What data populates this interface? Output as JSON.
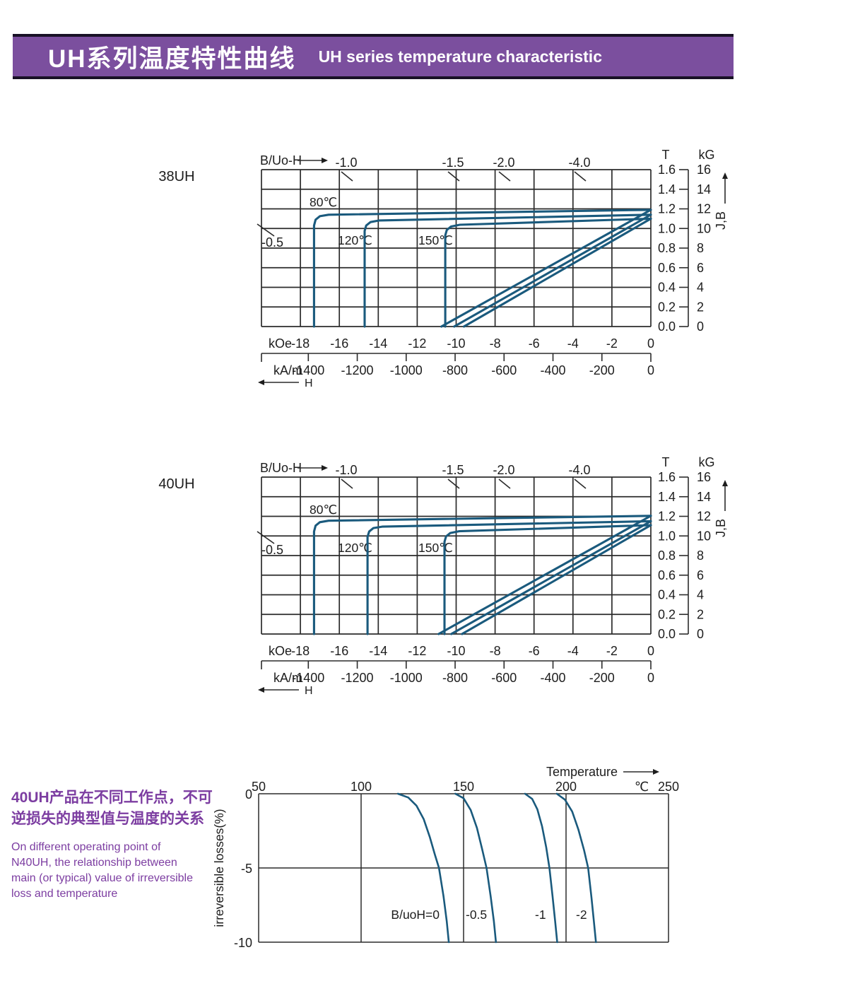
{
  "header": {
    "title_zh": "UH系列温度特性曲线",
    "title_en": "UH series temperature characteristic",
    "bg": "#7b4f9e",
    "border": "#191126",
    "text_color": "#ffffff"
  },
  "note": {
    "color": "#7c3da1",
    "zh_lines": [
      "40UH产品在不同工作点，不可",
      "逆损失的典型值与温度的关系"
    ],
    "en_lines": [
      "On different operating point of",
      "N40UH,  the relationship between",
      "main (or typical) value of irreversible",
      "loss and temperature"
    ]
  },
  "curve_color": "#1a5a7d",
  "chart_data": [
    {
      "type": "line",
      "id": "demag-38uh",
      "title": "38UH",
      "load_axis_label": "B/Uo-H",
      "load_lines_left": [
        "-0.5"
      ],
      "load_lines_top": [
        "-1.0",
        "-1.5",
        "-2.0",
        "-4.0"
      ],
      "temp_labels": [
        "80℃",
        "120℃",
        "150℃"
      ],
      "x_axis": {
        "unit_primary": "kOe",
        "ticks_primary": [
          -18,
          -16,
          -14,
          -12,
          -10,
          -8,
          -6,
          -4,
          -2,
          0
        ],
        "unit_secondary": "kA/m",
        "ticks_secondary": [
          -1400,
          -1200,
          -1000,
          -800,
          -600,
          -400,
          -200,
          0
        ],
        "arrow_label": "H",
        "range_kOe": [
          -20,
          0
        ]
      },
      "y_axis": {
        "unit_left": "T",
        "ticks_T": [
          "1.6",
          "1.4",
          "1.2",
          "1.0",
          "0.8",
          "0.6",
          "0.4",
          "0.2",
          "0.0"
        ],
        "unit_right": "kG",
        "ticks_kG": [
          "16",
          "14",
          "12",
          "10",
          "8",
          "6",
          "4",
          "2",
          "0"
        ],
        "axis_label": "J,B",
        "range_T": [
          0,
          1.6
        ]
      },
      "series": [
        {
          "name": "J 80℃",
          "points": [
            [
              -17.3,
              0
            ],
            [
              -17.3,
              1.03
            ],
            [
              -17.22,
              1.09
            ],
            [
              -17.0,
              1.125
            ],
            [
              -16.55,
              1.14
            ],
            [
              0,
              1.19
            ]
          ]
        },
        {
          "name": "J 120℃",
          "points": [
            [
              -14.7,
              0
            ],
            [
              -14.7,
              0.975
            ],
            [
              -14.62,
              1.03
            ],
            [
              -14.4,
              1.065
            ],
            [
              -13.95,
              1.082
            ],
            [
              0,
              1.14
            ]
          ]
        },
        {
          "name": "J 150℃",
          "points": [
            [
              -10.56,
              0
            ],
            [
              -10.56,
              0.93
            ],
            [
              -10.48,
              0.985
            ],
            [
              -10.26,
              1.02
            ],
            [
              -9.81,
              1.038
            ],
            [
              0,
              1.1
            ]
          ]
        },
        {
          "name": "B 80℃",
          "points": [
            [
              -10.76,
              0
            ],
            [
              0,
              1.19
            ]
          ]
        },
        {
          "name": "B 120℃",
          "points": [
            [
              -10.1,
              0
            ],
            [
              0,
              1.14
            ]
          ]
        },
        {
          "name": "B 150℃",
          "points": [
            [
              -9.6,
              0
            ],
            [
              0,
              1.1
            ]
          ]
        }
      ]
    },
    {
      "type": "line",
      "id": "demag-40uh",
      "title": "40UH",
      "load_axis_label": "B/Uo-H",
      "load_lines_left": [
        "-0.5"
      ],
      "load_lines_top": [
        "-1.0",
        "-1.5",
        "-2.0",
        "-4.0"
      ],
      "temp_labels": [
        "80℃",
        "120℃",
        "150℃"
      ],
      "x_axis": {
        "unit_primary": "kOe",
        "ticks_primary": [
          -18,
          -16,
          -14,
          -12,
          -10,
          -8,
          -6,
          -4,
          -2,
          0
        ],
        "unit_secondary": "kA/m",
        "ticks_secondary": [
          -1400,
          -1200,
          -1000,
          -800,
          -600,
          -400,
          -200,
          0
        ],
        "arrow_label": "H",
        "range_kOe": [
          -20,
          0
        ]
      },
      "y_axis": {
        "unit_left": "T",
        "ticks_T": [
          "1.6",
          "1.4",
          "1.2",
          "1.0",
          "0.8",
          "0.6",
          "0.4",
          "0.2",
          "0.0"
        ],
        "unit_right": "kG",
        "ticks_kG": [
          "16",
          "14",
          "12",
          "10",
          "8",
          "6",
          "4",
          "2",
          "0"
        ],
        "axis_label": "J,B",
        "range_T": [
          0,
          1.6
        ]
      },
      "series": [
        {
          "name": "J 80℃",
          "points": [
            [
              -17.3,
              0
            ],
            [
              -17.3,
              1.045
            ],
            [
              -17.22,
              1.105
            ],
            [
              -17.0,
              1.14
            ],
            [
              -16.55,
              1.155
            ],
            [
              0,
              1.205
            ]
          ]
        },
        {
          "name": "J 120℃",
          "points": [
            [
              -14.55,
              0
            ],
            [
              -14.55,
              0.99
            ],
            [
              -14.47,
              1.045
            ],
            [
              -14.25,
              1.08
            ],
            [
              -13.8,
              1.095
            ],
            [
              0,
              1.15
            ]
          ]
        },
        {
          "name": "J 150℃",
          "points": [
            [
              -10.6,
              0
            ],
            [
              -10.6,
              0.94
            ],
            [
              -10.52,
              0.995
            ],
            [
              -10.3,
              1.03
            ],
            [
              -9.85,
              1.048
            ],
            [
              0,
              1.11
            ]
          ]
        },
        {
          "name": "B 80℃",
          "points": [
            [
              -10.9,
              0
            ],
            [
              0,
              1.205
            ]
          ]
        },
        {
          "name": "B 120℃",
          "points": [
            [
              -10.25,
              0
            ],
            [
              0,
              1.15
            ]
          ]
        },
        {
          "name": "B 150℃",
          "points": [
            [
              -9.7,
              0
            ],
            [
              0,
              1.11
            ]
          ]
        }
      ]
    },
    {
      "type": "line",
      "id": "irreversible-loss",
      "x_title": "Temperature",
      "x_unit": "℃",
      "x_ticks": [
        50,
        100,
        150,
        200,
        250
      ],
      "x_range": [
        50,
        250
      ],
      "y_label": "irreversible  losses(%)",
      "y_ticks": [
        "0",
        "-5",
        "-10"
      ],
      "y_range": [
        -10,
        0
      ],
      "series": [
        {
          "name": "B/uoH=0",
          "points": [
            [
              118,
              0
            ],
            [
              123,
              -0.25
            ],
            [
              127,
              -0.8
            ],
            [
              130.5,
              -1.7
            ],
            [
              133.5,
              -2.9
            ],
            [
              136,
              -4.1
            ],
            [
              138,
              -5
            ],
            [
              140.2,
              -6.9
            ],
            [
              141.8,
              -8.6
            ],
            [
              142.8,
              -10
            ]
          ]
        },
        {
          "name": "-0.5",
          "points": [
            [
              146,
              0
            ],
            [
              150,
              -0.3
            ],
            [
              153.5,
              -1.1
            ],
            [
              156.5,
              -2.3
            ],
            [
              159,
              -3.7
            ],
            [
              161.2,
              -5
            ],
            [
              163.2,
              -6.9
            ],
            [
              164.8,
              -8.6
            ],
            [
              165.8,
              -10
            ]
          ]
        },
        {
          "name": "-1",
          "points": [
            [
              180,
              0
            ],
            [
              183.5,
              -0.35
            ],
            [
              186,
              -1.05
            ],
            [
              188.3,
              -2.2
            ],
            [
              190.3,
              -3.6
            ],
            [
              191.9,
              -5
            ],
            [
              193.4,
              -6.9
            ],
            [
              194.7,
              -8.6
            ],
            [
              195.7,
              -10
            ]
          ]
        },
        {
          "name": "-2",
          "points": [
            [
              195.5,
              0
            ],
            [
              199.5,
              -0.4
            ],
            [
              203,
              -1.2
            ],
            [
              206,
              -2.4
            ],
            [
              208.8,
              -3.8
            ],
            [
              210.8,
              -5
            ],
            [
              212.4,
              -7
            ],
            [
              213.6,
              -8.6
            ],
            [
              214.6,
              -10
            ]
          ]
        }
      ]
    }
  ]
}
